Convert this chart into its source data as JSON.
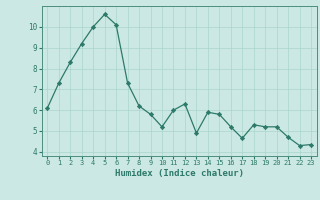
{
  "x": [
    0,
    1,
    2,
    3,
    4,
    5,
    6,
    7,
    8,
    9,
    10,
    11,
    12,
    13,
    14,
    15,
    16,
    17,
    18,
    19,
    20,
    21,
    22,
    23
  ],
  "y": [
    6.1,
    7.3,
    8.3,
    9.2,
    10.0,
    10.6,
    10.1,
    7.3,
    6.2,
    5.8,
    5.2,
    6.0,
    6.3,
    4.9,
    5.9,
    5.8,
    5.2,
    4.65,
    5.3,
    5.2,
    5.2,
    4.7,
    4.3,
    4.35
  ],
  "xlabel": "Humidex (Indice chaleur)",
  "xlim": [
    -0.5,
    23.5
  ],
  "ylim": [
    3.8,
    11.0
  ],
  "yticks": [
    4,
    5,
    6,
    7,
    8,
    9,
    10
  ],
  "xticks": [
    0,
    1,
    2,
    3,
    4,
    5,
    6,
    7,
    8,
    9,
    10,
    11,
    12,
    13,
    14,
    15,
    16,
    17,
    18,
    19,
    20,
    21,
    22,
    23
  ],
  "line_color": "#2d7a6a",
  "marker_color": "#2d7a6a",
  "bg_color": "#cce8e4",
  "grid_color": "#aad4ce",
  "xlabel_color": "#2d7a6a",
  "tick_color": "#2d7a6a",
  "spine_color": "#4a8f80"
}
